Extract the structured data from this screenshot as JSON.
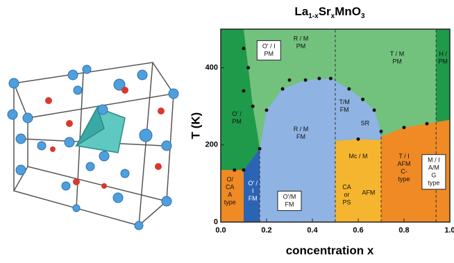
{
  "figure": {
    "title": {
      "base": "La",
      "sub1": "1-x",
      "mid": "Sr",
      "sub2": "x",
      "end": "MnO",
      "sub3": "3"
    },
    "xlabel": "concentration x",
    "ylabel": "T (K)",
    "xlim": [
      0,
      1
    ],
    "ylim": [
      0,
      500
    ],
    "xticks": [
      {
        "value": 0,
        "label": "0.0"
      },
      {
        "value": 0.2,
        "label": "0.2"
      },
      {
        "value": 0.4,
        "label": "0.4"
      },
      {
        "value": 0.6,
        "label": "0.6"
      },
      {
        "value": 0.8,
        "label": "0.8"
      },
      {
        "value": 1,
        "label": "1.0"
      }
    ],
    "yticks": [
      0,
      200,
      400
    ],
    "phases": [
      {
        "lines": [
          "O' / I",
          "PM"
        ]
      },
      {
        "lines": [
          "R / M",
          "PM"
        ]
      },
      {
        "lines": [
          "T / M",
          "PM"
        ]
      },
      {
        "lines": [
          "H /",
          "PM"
        ]
      },
      {
        "lines": [
          "O' /",
          "PM"
        ]
      },
      {
        "lines": [
          "R / M",
          "FM"
        ]
      },
      {
        "lines": [
          "T/M",
          "FM"
        ]
      },
      {
        "lines": [
          "SR"
        ]
      },
      {
        "lines": [
          "O'/M",
          "FM"
        ]
      },
      {
        "lines": [
          "O' /",
          "I",
          "FM"
        ]
      },
      {
        "lines": [
          "O/",
          "CA",
          "A",
          "type"
        ]
      },
      {
        "lines": [
          "Mc / M"
        ]
      },
      {
        "lines": [
          "CA",
          "or",
          "PS"
        ]
      },
      {
        "lines": [
          "AFM"
        ]
      },
      {
        "lines": [
          "T / I",
          "AFM",
          "C-",
          "type"
        ]
      },
      {
        "lines": [
          "M / I",
          "A/M",
          "G",
          "type"
        ]
      }
    ]
  }
}
